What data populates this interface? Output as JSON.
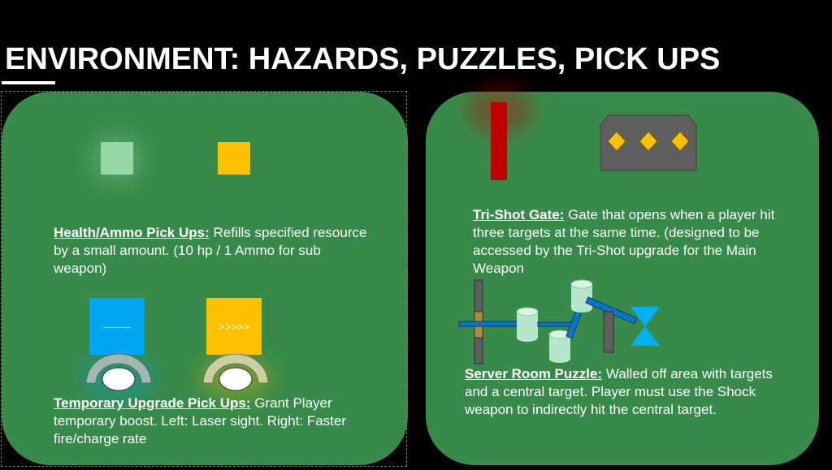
{
  "title": "ENVIRONMENT: HAZARDS, PUZZLES, PICK UPS",
  "left": {
    "pickups": {
      "heading": "Health/Ammo Pick Ups:",
      "body": " Refills specified resource by a small amount. (10 hp / 1 Ammo for sub weapon)"
    },
    "upgrades": {
      "heading": "Temporary Upgrade Pick Ups:",
      "body": " Grant Player temporary boost. Left: Laser sight. Right: Faster fire/charge rate",
      "laser_label": "--------",
      "rate_label": ">>>>>"
    }
  },
  "right": {
    "gate": {
      "heading": "Tri-Shot Gate:",
      "body": " Gate that opens when a player hit three targets at the same time. (designed to be accessed by the Tri-Shot upgrade for the Main Weapon"
    },
    "puzzle": {
      "heading": "Server Room Puzzle:",
      "body": " Walled off area with targets and a central target. Player must use the Shock weapon to indirectly hit the central target."
    }
  },
  "colors": {
    "panel": "#388a4a",
    "health": "#94d6a4",
    "ammo": "#ffc000",
    "laser": "#00a6f0",
    "gate_bar": "#c00000",
    "target": "#ffc000",
    "cylinder": "#b5e6cc",
    "beam": "#0a74c6",
    "hourglass": "#00b0f0"
  }
}
